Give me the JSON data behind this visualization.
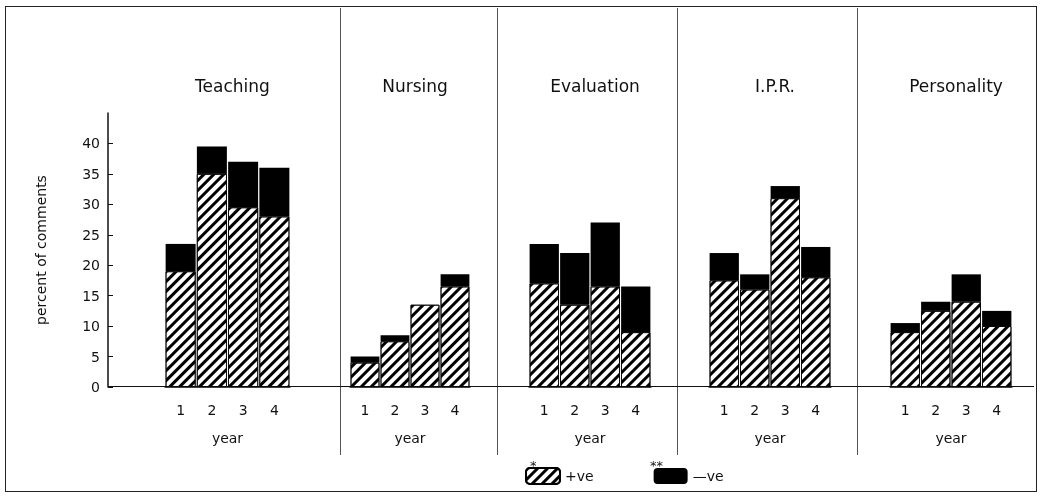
{
  "chart_data": [
    {
      "type": "bar",
      "title": "Teaching",
      "categories": [
        "1",
        "2",
        "3",
        "4"
      ],
      "xlabel": "year",
      "ylabel": "percent of comments",
      "stacked": true,
      "ylim": [
        0,
        45
      ],
      "yticks": [
        0,
        5,
        10,
        15,
        20,
        25,
        30,
        35,
        40
      ],
      "legend": "bottom",
      "annotations": [
        "*",
        "**"
      ],
      "series": [
        {
          "name": "+ve",
          "color": "#ffffff",
          "values": [
            19,
            35,
            29.5,
            28
          ]
        },
        {
          "name": "—ve",
          "color": "#000000",
          "values": [
            4.5,
            4.5,
            7.5,
            8
          ]
        }
      ]
    },
    {
      "type": "bar",
      "title": "Nursing",
      "categories": [
        "1",
        "2",
        "3",
        "4"
      ],
      "xlabel": "year",
      "stacked": true,
      "ylim": [
        0,
        40
      ],
      "yticks": [
        0,
        5,
        10,
        15,
        20,
        25,
        30,
        35,
        40
      ],
      "tick_labels": "x",
      "series": [
        {
          "color": "#ffffff",
          "values": [
            4,
            7.5,
            13.5,
            16.5
          ]
        },
        {
          "color": "#000000",
          "values": [
            1,
            1,
            0,
            2
          ]
        }
      ]
    },
    {
      "type": "bar",
      "title": "Evaluation",
      "categories": [
        "1",
        "2",
        "3",
        "4"
      ],
      "xlabel": "year",
      "stacked": true,
      "ylim": [
        0,
        40
      ],
      "yticks": [
        0,
        5,
        10,
        15,
        20,
        25,
        30,
        35,
        40
      ],
      "tick_labels": "x",
      "series": [
        {
          "color": "#ffffff",
          "values": [
            17,
            13.5,
            16.5,
            9
          ]
        },
        {
          "color": "#000000",
          "values": [
            6.5,
            8.5,
            10.5,
            7.5
          ]
        }
      ]
    },
    {
      "type": "bar",
      "title": "I.P.R.",
      "categories": [
        "1",
        "2",
        "3",
        "4"
      ],
      "xlabel": "year",
      "stacked": true,
      "ylim": [
        0,
        40
      ],
      "yticks": [
        0,
        5,
        10,
        15,
        20,
        25,
        30,
        35,
        40
      ],
      "tick_labels": "x",
      "series": [
        {
          "color": "#ffffff",
          "values": [
            17.5,
            16,
            31,
            18
          ]
        },
        {
          "color": "#000000",
          "values": [
            4.5,
            2.5,
            2,
            5
          ]
        }
      ]
    },
    {
      "type": "bar",
      "title": "Personality",
      "categories": [
        "1",
        "2",
        "3",
        "4"
      ],
      "xlabel": "year",
      "stacked": true,
      "ylim": [
        0,
        40
      ],
      "yticks": [
        0,
        5,
        10,
        15,
        20,
        25,
        30,
        35,
        40
      ],
      "tick_labels": "x",
      "series": [
        {
          "color": "#ffffff",
          "values": [
            9,
            12.5,
            14,
            10
          ]
        },
        {
          "color": "#000000",
          "values": [
            1.5,
            1.5,
            4.5,
            2.5
          ]
        }
      ]
    }
  ]
}
